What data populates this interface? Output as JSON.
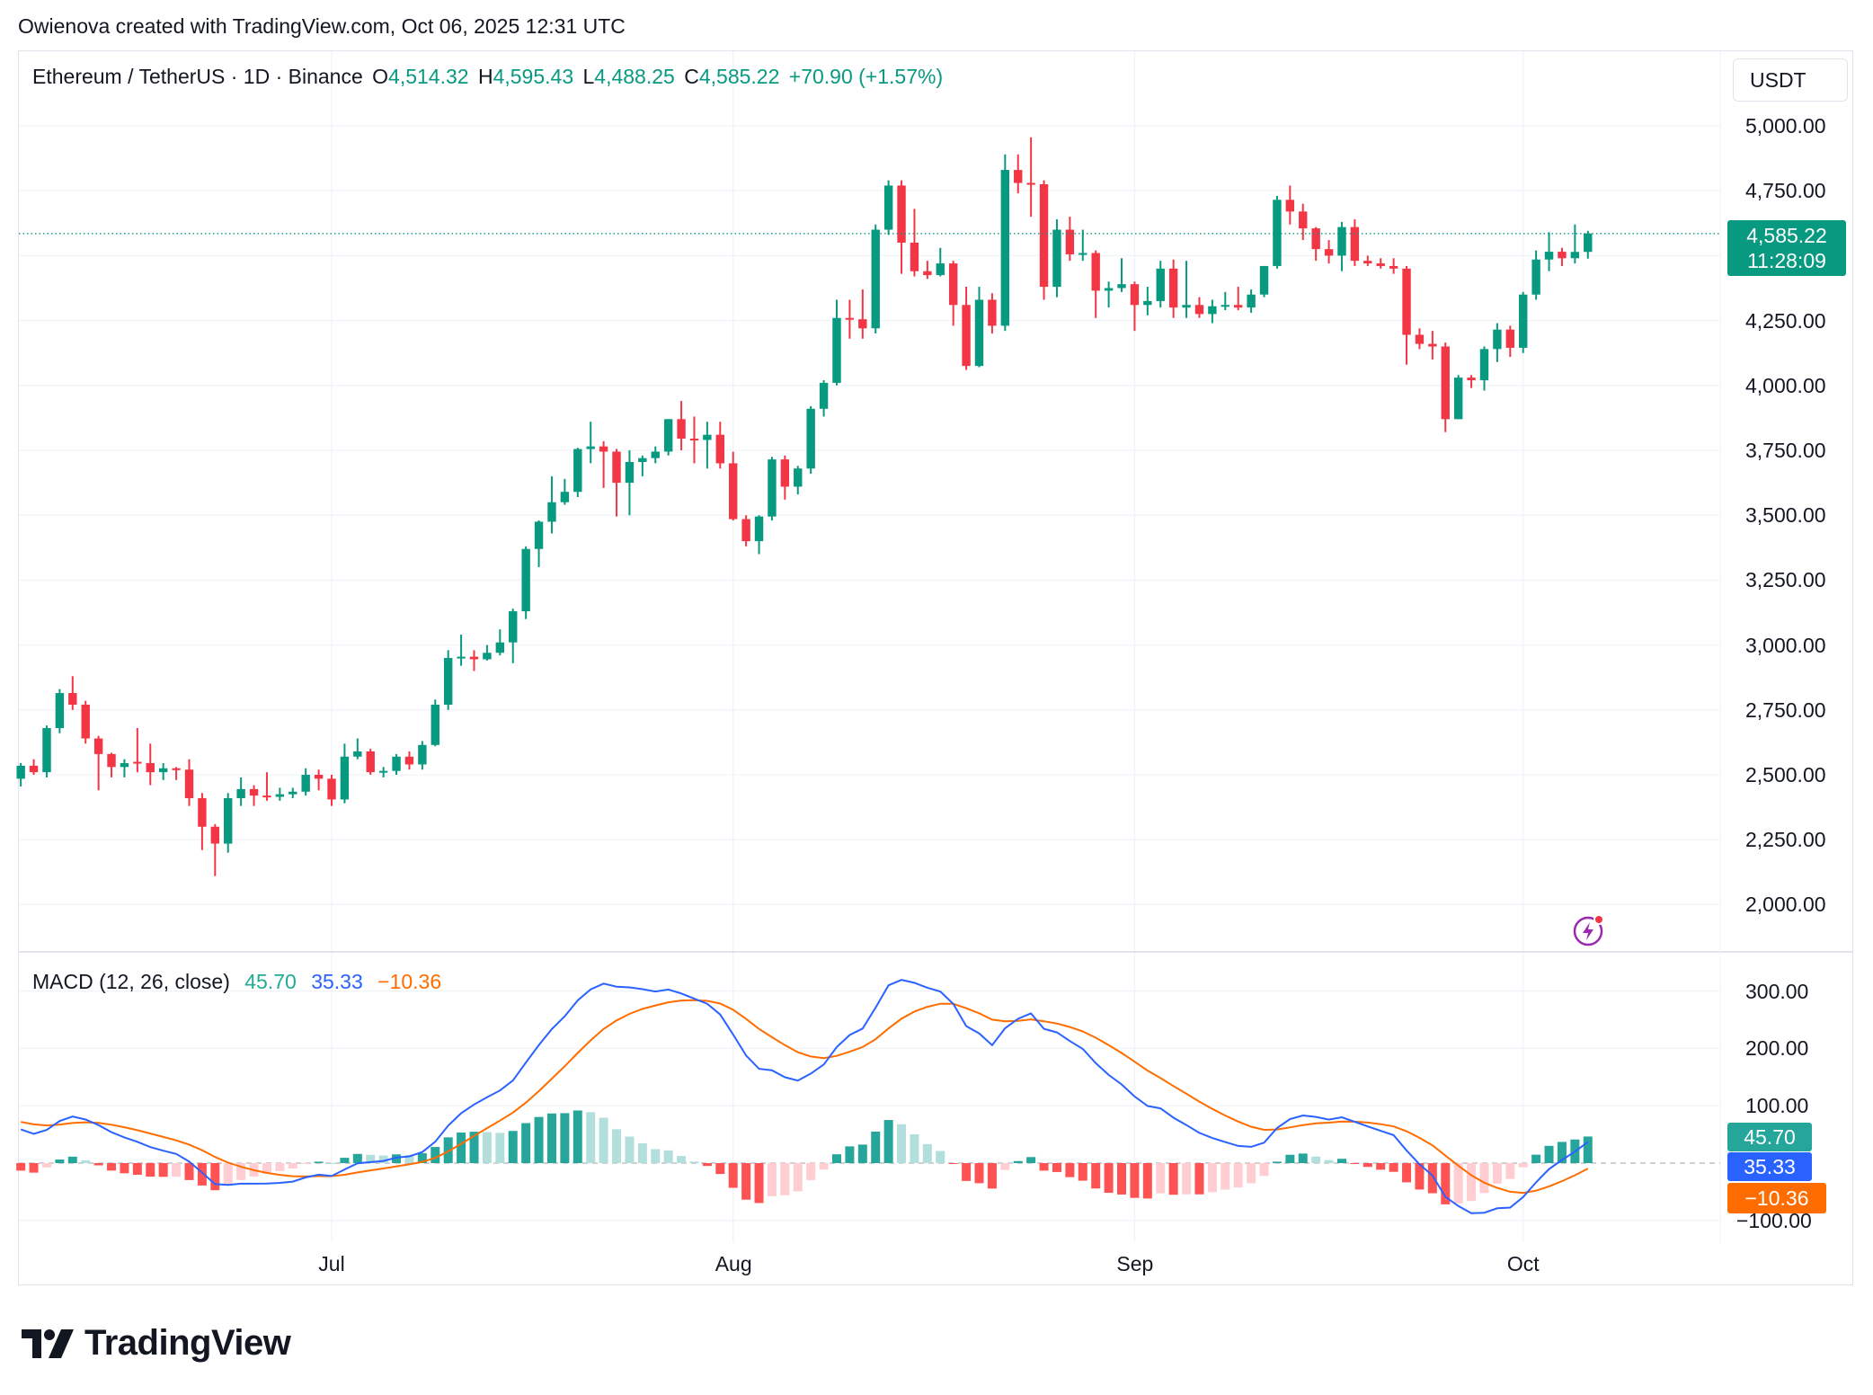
{
  "credit": "Owienova created with TradingView.com, Oct 06, 2025 12:31 UTC",
  "legend": {
    "symbol": "Ethereum / TetherUS · 1D · Binance",
    "o_label": "O",
    "o": "4,514.32",
    "h_label": "H",
    "h": "4,595.43",
    "l_label": "L",
    "l": "4,488.25",
    "c_label": "C",
    "c": "4,585.22",
    "change": "+70.90 (+1.57%)"
  },
  "currency": "USDT",
  "price_label": {
    "price": "4,585.22",
    "countdown": "11:28:09"
  },
  "macd_legend": {
    "title": "MACD (12, 26, close)",
    "hist": "45.70",
    "macd": "35.33",
    "signal": "−10.36"
  },
  "macd_labels": {
    "hist": "45.70",
    "macd": "35.33",
    "signal": "−10.36"
  },
  "brand": "TradingView",
  "icons": {
    "alert": "lightning-icon",
    "logo": "tradingview-logo"
  },
  "colors": {
    "up": "#089981",
    "down": "#f23645",
    "macd": "#2962ff",
    "signal": "#ff6d00",
    "hist_up_strong": "#26a69a",
    "hist_up_weak": "#b2dfdb",
    "hist_down_weak": "#ffcdd2",
    "hist_down_strong": "#ff5252"
  },
  "chart_data": {
    "type": "candlestick",
    "title": "Ethereum / TetherUS · 1D · Binance",
    "interval": "1D",
    "ylim": [
      1850,
      5050
    ],
    "grid": true,
    "price_ticks": [
      {
        "value": 5000,
        "label": "5,000.00"
      },
      {
        "value": 4750,
        "label": "4,750.00"
      },
      {
        "value": 4500,
        "label": ""
      },
      {
        "value": 4250,
        "label": "4,250.00"
      },
      {
        "value": 4000,
        "label": "4,000.00"
      },
      {
        "value": 3750,
        "label": "3,750.00"
      },
      {
        "value": 3500,
        "label": "3,500.00"
      },
      {
        "value": 3250,
        "label": "3,250.00"
      },
      {
        "value": 3000,
        "label": "3,000.00"
      },
      {
        "value": 2750,
        "label": "2,750.00"
      },
      {
        "value": 2500,
        "label": "2,500.00"
      },
      {
        "value": 2250,
        "label": "2,250.00"
      },
      {
        "value": 2000,
        "label": "2,000.00"
      }
    ],
    "time_ticks": [
      {
        "date": "2025-07-01",
        "label": "Jul"
      },
      {
        "date": "2025-08-01",
        "label": "Aug"
      },
      {
        "date": "2025-09-01",
        "label": "Sep"
      },
      {
        "date": "2025-10-01",
        "label": "Oct"
      }
    ],
    "last_price": 4585.22,
    "candles_ohlc": [
      [
        "2025-06-07",
        2485,
        2545,
        2455,
        2535
      ],
      [
        "2025-06-08",
        2535,
        2560,
        2500,
        2510
      ],
      [
        "2025-06-09",
        2510,
        2690,
        2490,
        2680
      ],
      [
        "2025-06-10",
        2680,
        2830,
        2660,
        2815
      ],
      [
        "2025-06-11",
        2815,
        2880,
        2750,
        2770
      ],
      [
        "2025-06-12",
        2770,
        2785,
        2620,
        2640
      ],
      [
        "2025-06-13",
        2640,
        2650,
        2440,
        2580
      ],
      [
        "2025-06-14",
        2580,
        2585,
        2490,
        2530
      ],
      [
        "2025-06-15",
        2530,
        2560,
        2490,
        2545
      ],
      [
        "2025-06-16",
        2550,
        2680,
        2510,
        2545
      ],
      [
        "2025-06-17",
        2545,
        2620,
        2460,
        2510
      ],
      [
        "2025-06-18",
        2510,
        2545,
        2480,
        2525
      ],
      [
        "2025-06-19",
        2525,
        2530,
        2480,
        2520
      ],
      [
        "2025-06-20",
        2520,
        2560,
        2380,
        2410
      ],
      [
        "2025-06-21",
        2410,
        2430,
        2210,
        2300
      ],
      [
        "2025-06-22",
        2300,
        2310,
        2110,
        2235
      ],
      [
        "2025-06-23",
        2235,
        2430,
        2200,
        2410
      ],
      [
        "2025-06-24",
        2410,
        2490,
        2380,
        2445
      ],
      [
        "2025-06-25",
        2445,
        2460,
        2380,
        2420
      ],
      [
        "2025-06-26",
        2420,
        2510,
        2400,
        2415
      ],
      [
        "2025-06-27",
        2415,
        2450,
        2400,
        2425
      ],
      [
        "2025-06-28",
        2425,
        2450,
        2410,
        2435
      ],
      [
        "2025-06-29",
        2435,
        2525,
        2420,
        2500
      ],
      [
        "2025-06-30",
        2500,
        2520,
        2440,
        2485
      ],
      [
        "2025-07-01",
        2485,
        2500,
        2380,
        2405
      ],
      [
        "2025-07-02",
        2405,
        2620,
        2390,
        2570
      ],
      [
        "2025-07-03",
        2570,
        2640,
        2560,
        2590
      ],
      [
        "2025-07-04",
        2590,
        2600,
        2500,
        2510
      ],
      [
        "2025-07-05",
        2510,
        2530,
        2490,
        2515
      ],
      [
        "2025-07-06",
        2515,
        2580,
        2500,
        2570
      ],
      [
        "2025-07-07",
        2570,
        2590,
        2520,
        2540
      ],
      [
        "2025-07-08",
        2540,
        2630,
        2520,
        2615
      ],
      [
        "2025-07-09",
        2615,
        2790,
        2610,
        2770
      ],
      [
        "2025-07-10",
        2770,
        2980,
        2750,
        2950
      ],
      [
        "2025-07-11",
        2950,
        3040,
        2920,
        2955
      ],
      [
        "2025-07-12",
        2955,
        2980,
        2900,
        2945
      ],
      [
        "2025-07-13",
        2945,
        3000,
        2940,
        2970
      ],
      [
        "2025-07-14",
        2970,
        3060,
        2960,
        3010
      ],
      [
        "2025-07-15",
        3010,
        3140,
        2930,
        3130
      ],
      [
        "2025-07-16",
        3130,
        3380,
        3100,
        3370
      ],
      [
        "2025-07-17",
        3370,
        3480,
        3300,
        3475
      ],
      [
        "2025-07-18",
        3475,
        3650,
        3430,
        3550
      ],
      [
        "2025-07-19",
        3550,
        3640,
        3540,
        3590
      ],
      [
        "2025-07-20",
        3590,
        3760,
        3570,
        3755
      ],
      [
        "2025-07-21",
        3755,
        3860,
        3700,
        3765
      ],
      [
        "2025-07-22",
        3765,
        3785,
        3605,
        3745
      ],
      [
        "2025-07-23",
        3745,
        3755,
        3495,
        3625
      ],
      [
        "2025-07-24",
        3625,
        3750,
        3500,
        3705
      ],
      [
        "2025-07-25",
        3705,
        3730,
        3650,
        3720
      ],
      [
        "2025-07-26",
        3720,
        3765,
        3700,
        3745
      ],
      [
        "2025-07-27",
        3745,
        3870,
        3730,
        3870
      ],
      [
        "2025-07-28",
        3870,
        3940,
        3750,
        3795
      ],
      [
        "2025-07-29",
        3795,
        3880,
        3700,
        3790
      ],
      [
        "2025-07-30",
        3790,
        3860,
        3680,
        3810
      ],
      [
        "2025-07-31",
        3810,
        3860,
        3680,
        3700
      ],
      [
        "2025-08-01",
        3700,
        3745,
        3480,
        3485
      ],
      [
        "2025-08-02",
        3485,
        3500,
        3380,
        3400
      ],
      [
        "2025-08-03",
        3400,
        3500,
        3350,
        3495
      ],
      [
        "2025-08-04",
        3495,
        3725,
        3480,
        3715
      ],
      [
        "2025-08-05",
        3715,
        3730,
        3560,
        3610
      ],
      [
        "2025-08-06",
        3610,
        3690,
        3580,
        3680
      ],
      [
        "2025-08-07",
        3680,
        3920,
        3660,
        3910
      ],
      [
        "2025-08-08",
        3910,
        4020,
        3880,
        4010
      ],
      [
        "2025-08-09",
        4010,
        4330,
        4000,
        4260
      ],
      [
        "2025-08-10",
        4260,
        4330,
        4180,
        4255
      ],
      [
        "2025-08-11",
        4255,
        4370,
        4180,
        4220
      ],
      [
        "2025-08-12",
        4220,
        4620,
        4200,
        4600
      ],
      [
        "2025-08-13",
        4600,
        4790,
        4580,
        4770
      ],
      [
        "2025-08-14",
        4770,
        4790,
        4430,
        4550
      ],
      [
        "2025-08-15",
        4550,
        4680,
        4420,
        4440
      ],
      [
        "2025-08-16",
        4440,
        4480,
        4410,
        4425
      ],
      [
        "2025-08-17",
        4425,
        4530,
        4420,
        4470
      ],
      [
        "2025-08-18",
        4470,
        4480,
        4230,
        4310
      ],
      [
        "2025-08-19",
        4310,
        4380,
        4060,
        4075
      ],
      [
        "2025-08-20",
        4075,
        4380,
        4070,
        4330
      ],
      [
        "2025-08-21",
        4330,
        4355,
        4200,
        4230
      ],
      [
        "2025-08-22",
        4230,
        4890,
        4210,
        4830
      ],
      [
        "2025-08-23",
        4830,
        4890,
        4740,
        4780
      ],
      [
        "2025-08-24",
        4780,
        4956,
        4650,
        4775
      ],
      [
        "2025-08-25",
        4775,
        4790,
        4330,
        4380
      ],
      [
        "2025-08-26",
        4380,
        4640,
        4340,
        4600
      ],
      [
        "2025-08-27",
        4600,
        4650,
        4480,
        4505
      ],
      [
        "2025-08-28",
        4505,
        4600,
        4480,
        4510
      ],
      [
        "2025-08-29",
        4510,
        4520,
        4260,
        4365
      ],
      [
        "2025-08-30",
        4365,
        4400,
        4300,
        4375
      ],
      [
        "2025-08-31",
        4375,
        4490,
        4360,
        4390
      ],
      [
        "2025-09-01",
        4390,
        4400,
        4210,
        4310
      ],
      [
        "2025-09-02",
        4310,
        4380,
        4270,
        4325
      ],
      [
        "2025-09-03",
        4325,
        4480,
        4300,
        4450
      ],
      [
        "2025-09-04",
        4450,
        4485,
        4260,
        4300
      ],
      [
        "2025-09-05",
        4300,
        4480,
        4260,
        4310
      ],
      [
        "2025-09-06",
        4310,
        4340,
        4260,
        4275
      ],
      [
        "2025-09-07",
        4275,
        4330,
        4240,
        4305
      ],
      [
        "2025-09-08",
        4305,
        4360,
        4290,
        4310
      ],
      [
        "2025-09-09",
        4310,
        4380,
        4290,
        4300
      ],
      [
        "2025-09-10",
        4300,
        4370,
        4280,
        4350
      ],
      [
        "2025-09-11",
        4350,
        4460,
        4340,
        4460
      ],
      [
        "2025-09-12",
        4460,
        4730,
        4450,
        4715
      ],
      [
        "2025-09-13",
        4715,
        4770,
        4620,
        4670
      ],
      [
        "2025-09-14",
        4670,
        4700,
        4560,
        4605
      ],
      [
        "2025-09-15",
        4605,
        4610,
        4480,
        4525
      ],
      [
        "2025-09-16",
        4525,
        4560,
        4470,
        4500
      ],
      [
        "2025-09-17",
        4500,
        4630,
        4440,
        4610
      ],
      [
        "2025-09-18",
        4610,
        4640,
        4460,
        4480
      ],
      [
        "2025-09-19",
        4480,
        4500,
        4460,
        4470
      ],
      [
        "2025-09-20",
        4470,
        4490,
        4450,
        4460
      ],
      [
        "2025-09-21",
        4460,
        4490,
        4430,
        4450
      ],
      [
        "2025-09-22",
        4450,
        4460,
        4080,
        4195
      ],
      [
        "2025-09-23",
        4195,
        4220,
        4140,
        4160
      ],
      [
        "2025-09-24",
        4160,
        4210,
        4100,
        4150
      ],
      [
        "2025-09-25",
        4150,
        4165,
        3820,
        3870
      ],
      [
        "2025-09-26",
        3870,
        4040,
        3870,
        4030
      ],
      [
        "2025-09-27",
        4030,
        4040,
        3990,
        4020
      ],
      [
        "2025-09-28",
        4020,
        4150,
        3980,
        4140
      ],
      [
        "2025-09-29",
        4140,
        4240,
        4090,
        4215
      ],
      [
        "2025-09-30",
        4215,
        4230,
        4110,
        4145
      ],
      [
        "2025-10-01",
        4145,
        4360,
        4125,
        4350
      ],
      [
        "2025-10-02",
        4350,
        4520,
        4330,
        4485
      ],
      [
        "2025-10-03",
        4485,
        4590,
        4440,
        4515
      ],
      [
        "2025-10-04",
        4515,
        4530,
        4460,
        4490
      ],
      [
        "2025-10-05",
        4490,
        4620,
        4470,
        4514.32
      ],
      [
        "2025-10-06",
        4514.32,
        4595.43,
        4488.25,
        4585.22
      ]
    ],
    "macd": {
      "params": "12, 26, close",
      "ylim": [
        -130,
        340
      ],
      "ticks": [
        {
          "value": 300,
          "label": "300.00"
        },
        {
          "value": 200,
          "label": "200.00"
        },
        {
          "value": 100,
          "label": "100.00"
        },
        {
          "value": -100,
          "label": "−100.00"
        }
      ],
      "last": {
        "histogram": 45.7,
        "macd": 35.33,
        "signal": -10.36
      }
    }
  }
}
